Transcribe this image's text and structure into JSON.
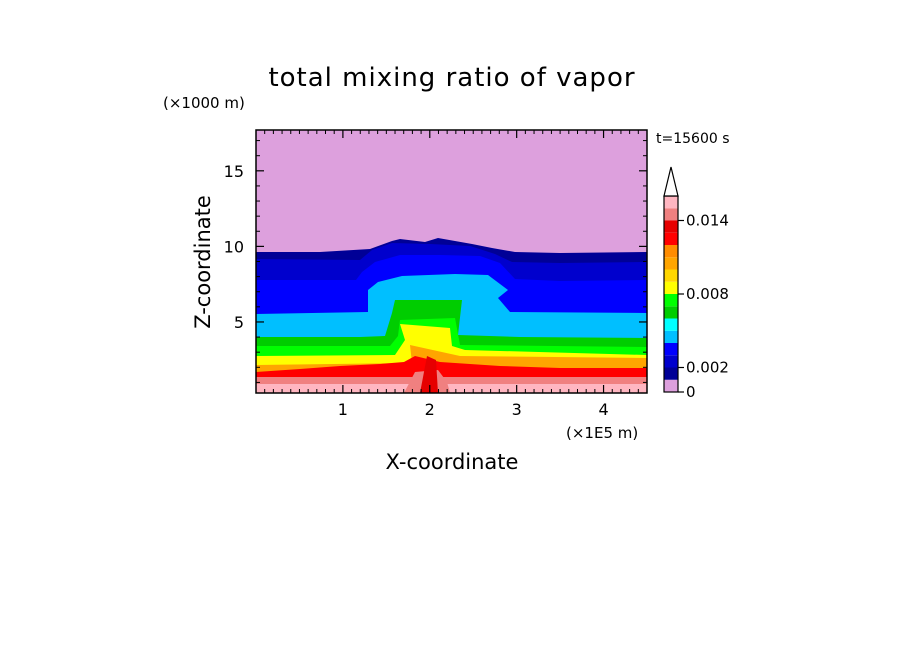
{
  "chart_data": {
    "type": "heatmap",
    "title": "total mixing ratio of vapor",
    "xlabel": "X-coordinate",
    "ylabel": "Z-coordinate",
    "x_unit": "(×1E5 m)",
    "y_unit": "(×1000 m)",
    "time_label": "t=15600 s",
    "xlim": [
      0,
      4.5
    ],
    "ylim": [
      0.3,
      17.7
    ],
    "x_ticks": [
      1,
      2,
      3,
      4
    ],
    "y_ticks": [
      5,
      10,
      15
    ],
    "colorbar": {
      "levels": [
        0,
        0.001,
        0.002,
        0.003,
        0.004,
        0.005,
        0.006,
        0.007,
        0.008,
        0.009,
        0.01,
        0.011,
        0.012,
        0.013,
        0.014,
        0.015,
        0.016
      ],
      "tick_labels": [
        "0",
        "0.002",
        "0.008",
        "0.014"
      ],
      "tick_values": [
        0,
        0.002,
        0.008,
        0.014
      ],
      "colors": [
        "#dda0dd",
        "#000096",
        "#0000cd",
        "#0000ff",
        "#00bfff",
        "#00ffff",
        "#00cd00",
        "#00ff00",
        "#ffff00",
        "#ffd700",
        "#ffa500",
        "#ff8c00",
        "#ff0000",
        "#e60000",
        "#f08080",
        "#ffb6c1"
      ],
      "extend": "max"
    }
  }
}
